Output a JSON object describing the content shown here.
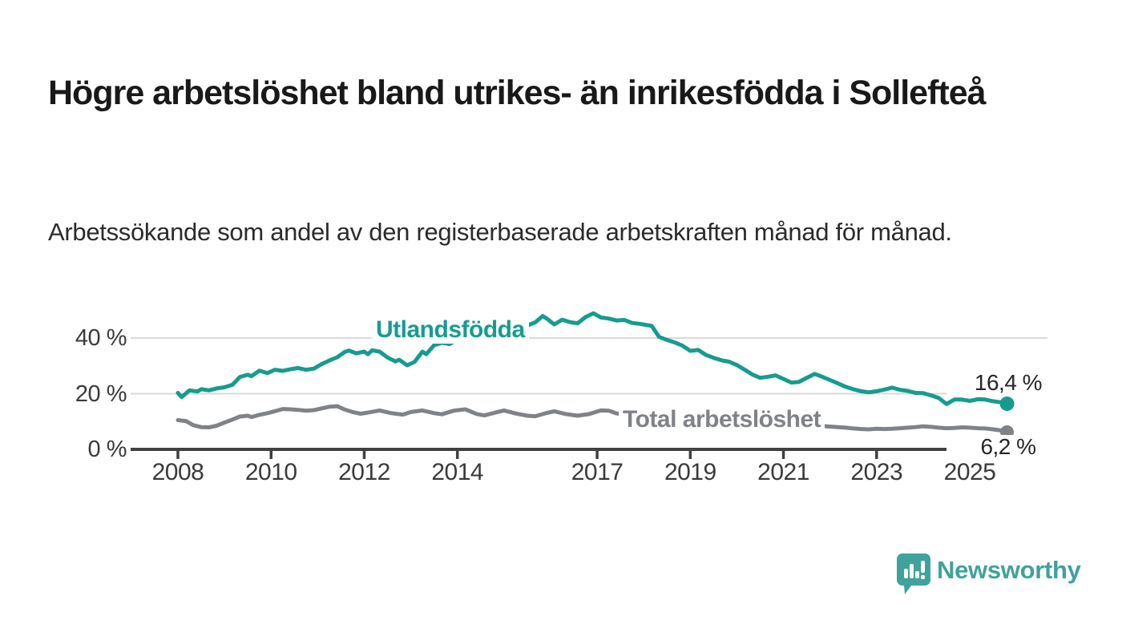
{
  "header": {
    "title": "Högre arbetslöshet bland utrikes- än inrikesfödda i Sollefteå",
    "subtitle": "Arbetssökande som andel av den registerbaserade arbetskraften månad för månad."
  },
  "chart_data": {
    "type": "line",
    "title": "Högre arbetslöshet bland utrikes- än inrikesfödda i Sollefteå",
    "subtitle": "Arbetssökande som andel av den registerbaserade arbetskraften månad för månad.",
    "unit": "%",
    "x_domain": [
      2008,
      2025.8
    ],
    "y_domain": [
      0,
      52
    ],
    "grid": "horizontal-only",
    "x_ticks": [
      2008,
      2010,
      2012,
      2014,
      2017,
      2019,
      2021,
      2023,
      2025
    ],
    "y_ticks": [
      {
        "value": 0,
        "label": "0 %"
      },
      {
        "value": 20,
        "label": "20 %"
      },
      {
        "value": 40,
        "label": "40 %"
      }
    ],
    "axis_color": "#414141",
    "grid_color": "#d9d9d9",
    "series": [
      {
        "name": "Total arbetslöshet",
        "color": "#7f8287",
        "end_label": "6,2 %",
        "end_value": 6.2,
        "points": [
          [
            2008.0,
            10.5
          ],
          [
            2008.17,
            10.2
          ],
          [
            2008.33,
            8.7
          ],
          [
            2008.5,
            8.0
          ],
          [
            2008.67,
            7.9
          ],
          [
            2008.83,
            8.5
          ],
          [
            2009.0,
            9.6
          ],
          [
            2009.17,
            10.7
          ],
          [
            2009.33,
            11.8
          ],
          [
            2009.5,
            12.1
          ],
          [
            2009.58,
            11.6
          ],
          [
            2009.75,
            12.4
          ],
          [
            2009.92,
            13.0
          ],
          [
            2010.08,
            13.7
          ],
          [
            2010.25,
            14.5
          ],
          [
            2010.42,
            14.4
          ],
          [
            2010.58,
            14.2
          ],
          [
            2010.75,
            13.9
          ],
          [
            2010.92,
            14.1
          ],
          [
            2011.08,
            14.7
          ],
          [
            2011.25,
            15.3
          ],
          [
            2011.42,
            15.5
          ],
          [
            2011.58,
            14.3
          ],
          [
            2011.75,
            13.4
          ],
          [
            2011.92,
            12.8
          ],
          [
            2012.08,
            13.2
          ],
          [
            2012.33,
            14.0
          ],
          [
            2012.58,
            13.0
          ],
          [
            2012.83,
            12.5
          ],
          [
            2013.0,
            13.4
          ],
          [
            2013.25,
            14.0
          ],
          [
            2013.5,
            13.0
          ],
          [
            2013.67,
            12.6
          ],
          [
            2013.92,
            13.9
          ],
          [
            2014.17,
            14.4
          ],
          [
            2014.42,
            12.7
          ],
          [
            2014.58,
            12.2
          ],
          [
            2014.83,
            13.3
          ],
          [
            2015.0,
            14.0
          ],
          [
            2015.25,
            12.9
          ],
          [
            2015.5,
            12.1
          ],
          [
            2015.67,
            11.9
          ],
          [
            2015.92,
            13.1
          ],
          [
            2016.08,
            13.7
          ],
          [
            2016.33,
            12.7
          ],
          [
            2016.58,
            12.1
          ],
          [
            2016.83,
            12.7
          ],
          [
            2017.08,
            14.0
          ],
          [
            2017.25,
            13.9
          ],
          [
            2017.42,
            12.9
          ],
          [
            2017.67,
            12.4
          ],
          [
            2017.92,
            12.9
          ],
          [
            2018.17,
            13.3
          ],
          [
            2018.42,
            12.5
          ],
          [
            2018.67,
            12.0
          ],
          [
            2018.92,
            11.6
          ],
          [
            2019.17,
            11.8
          ],
          [
            2019.42,
            11.1
          ],
          [
            2019.67,
            10.6
          ],
          [
            2019.92,
            10.9
          ],
          [
            2020.17,
            11.3
          ],
          [
            2020.42,
            10.7
          ],
          [
            2020.67,
            10.1
          ],
          [
            2020.92,
            9.7
          ],
          [
            2021.17,
            9.3
          ],
          [
            2021.42,
            8.9
          ],
          [
            2021.67,
            8.6
          ],
          [
            2021.92,
            8.3
          ],
          [
            2022.17,
            8.0
          ],
          [
            2022.33,
            7.8
          ],
          [
            2022.5,
            7.5
          ],
          [
            2022.67,
            7.3
          ],
          [
            2022.83,
            7.2
          ],
          [
            2023.0,
            7.4
          ],
          [
            2023.17,
            7.3
          ],
          [
            2023.33,
            7.4
          ],
          [
            2023.5,
            7.6
          ],
          [
            2023.67,
            7.8
          ],
          [
            2023.83,
            8.0
          ],
          [
            2024.0,
            8.3
          ],
          [
            2024.17,
            8.1
          ],
          [
            2024.33,
            7.8
          ],
          [
            2024.5,
            7.6
          ],
          [
            2024.67,
            7.7
          ],
          [
            2024.83,
            7.9
          ],
          [
            2025.0,
            7.8
          ],
          [
            2025.17,
            7.6
          ],
          [
            2025.33,
            7.5
          ],
          [
            2025.5,
            7.2
          ],
          [
            2025.67,
            6.8
          ],
          [
            2025.8,
            6.2
          ]
        ]
      },
      {
        "name": "Utlandsfödda",
        "color": "#169c8f",
        "end_label": "16,4 %",
        "end_value": 16.4,
        "points": [
          [
            2008.0,
            20.3
          ],
          [
            2008.08,
            18.8
          ],
          [
            2008.25,
            21.2
          ],
          [
            2008.42,
            20.8
          ],
          [
            2008.5,
            21.6
          ],
          [
            2008.67,
            21.2
          ],
          [
            2008.83,
            21.9
          ],
          [
            2009.0,
            22.3
          ],
          [
            2009.17,
            23.2
          ],
          [
            2009.33,
            26.0
          ],
          [
            2009.5,
            26.8
          ],
          [
            2009.58,
            26.3
          ],
          [
            2009.75,
            28.3
          ],
          [
            2009.92,
            27.4
          ],
          [
            2010.08,
            28.6
          ],
          [
            2010.25,
            28.2
          ],
          [
            2010.42,
            28.8
          ],
          [
            2010.58,
            29.2
          ],
          [
            2010.75,
            28.6
          ],
          [
            2010.92,
            29.0
          ],
          [
            2011.08,
            30.6
          ],
          [
            2011.25,
            31.9
          ],
          [
            2011.42,
            33.1
          ],
          [
            2011.58,
            35.0
          ],
          [
            2011.67,
            35.5
          ],
          [
            2011.83,
            34.5
          ],
          [
            2012.0,
            35.1
          ],
          [
            2012.08,
            34.2
          ],
          [
            2012.17,
            35.6
          ],
          [
            2012.33,
            35.1
          ],
          [
            2012.5,
            33.0
          ],
          [
            2012.67,
            31.6
          ],
          [
            2012.75,
            32.2
          ],
          [
            2012.92,
            30.2
          ],
          [
            2013.08,
            31.4
          ],
          [
            2013.25,
            35.1
          ],
          [
            2013.33,
            34.2
          ],
          [
            2013.5,
            37.4
          ],
          [
            2013.67,
            38.3
          ],
          [
            2013.83,
            37.8
          ],
          [
            2014.0,
            39.4
          ],
          [
            2014.17,
            39.0
          ],
          [
            2014.33,
            39.8
          ],
          [
            2014.5,
            39.2
          ],
          [
            2014.67,
            40.1
          ],
          [
            2014.83,
            40.6
          ],
          [
            2015.0,
            41.6
          ],
          [
            2015.17,
            42.2
          ],
          [
            2015.33,
            43.3
          ],
          [
            2015.5,
            44.5
          ],
          [
            2015.67,
            45.6
          ],
          [
            2015.83,
            47.9
          ],
          [
            2015.92,
            47.0
          ],
          [
            2016.0,
            45.9
          ],
          [
            2016.08,
            44.9
          ],
          [
            2016.25,
            46.6
          ],
          [
            2016.42,
            45.7
          ],
          [
            2016.58,
            45.3
          ],
          [
            2016.75,
            47.5
          ],
          [
            2016.92,
            48.9
          ],
          [
            2017.08,
            47.4
          ],
          [
            2017.25,
            47.0
          ],
          [
            2017.42,
            46.3
          ],
          [
            2017.58,
            46.5
          ],
          [
            2017.75,
            45.4
          ],
          [
            2017.92,
            45.1
          ],
          [
            2018.08,
            44.6
          ],
          [
            2018.17,
            44.4
          ],
          [
            2018.33,
            40.4
          ],
          [
            2018.5,
            39.3
          ],
          [
            2018.67,
            38.4
          ],
          [
            2018.83,
            37.3
          ],
          [
            2019.0,
            35.4
          ],
          [
            2019.17,
            35.7
          ],
          [
            2019.33,
            34.0
          ],
          [
            2019.5,
            32.9
          ],
          [
            2019.67,
            32.0
          ],
          [
            2019.83,
            31.5
          ],
          [
            2020.0,
            30.3
          ],
          [
            2020.17,
            28.6
          ],
          [
            2020.33,
            26.9
          ],
          [
            2020.5,
            25.7
          ],
          [
            2020.67,
            26.1
          ],
          [
            2020.83,
            26.6
          ],
          [
            2021.0,
            25.3
          ],
          [
            2021.17,
            24.0
          ],
          [
            2021.33,
            24.2
          ],
          [
            2021.5,
            25.7
          ],
          [
            2021.67,
            27.1
          ],
          [
            2021.83,
            26.1
          ],
          [
            2022.0,
            24.9
          ],
          [
            2022.17,
            23.7
          ],
          [
            2022.33,
            22.5
          ],
          [
            2022.5,
            21.6
          ],
          [
            2022.67,
            20.9
          ],
          [
            2022.83,
            20.5
          ],
          [
            2023.0,
            20.9
          ],
          [
            2023.17,
            21.5
          ],
          [
            2023.33,
            22.2
          ],
          [
            2023.5,
            21.4
          ],
          [
            2023.67,
            21.0
          ],
          [
            2023.83,
            20.3
          ],
          [
            2024.0,
            20.2
          ],
          [
            2024.17,
            19.4
          ],
          [
            2024.33,
            18.5
          ],
          [
            2024.5,
            16.3
          ],
          [
            2024.67,
            17.9
          ],
          [
            2024.83,
            17.9
          ],
          [
            2025.0,
            17.4
          ],
          [
            2025.17,
            18.0
          ],
          [
            2025.33,
            17.9
          ],
          [
            2025.5,
            17.3
          ],
          [
            2025.67,
            16.9
          ],
          [
            2025.8,
            16.4
          ]
        ]
      }
    ],
    "legend_position": "inline-labels"
  },
  "footer": {
    "brand": "Newsworthy",
    "brand_color": "#3fa29b",
    "logo_icon": "speech-bubble-bar-chart-icon"
  }
}
